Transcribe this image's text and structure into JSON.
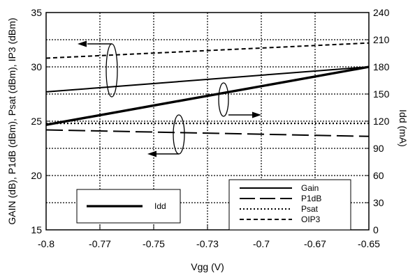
{
  "chart_data": {
    "type": "line",
    "xlabel": "Vgg (V)",
    "ylabel_left": "GAIN (dB), P1dB (dBm), Psat (dBm), IP3 (dBm)",
    "ylabel_right": "Idd (mA)",
    "xlim": [
      -0.8,
      -0.65
    ],
    "ylim_left": [
      15,
      35
    ],
    "ylim_right": [
      0,
      240
    ],
    "x_ticks": [
      -0.8,
      -0.775,
      -0.75,
      -0.725,
      -0.7,
      -0.675,
      -0.65
    ],
    "x_tick_labels": [
      "-0.8",
      "-0.77",
      "-0.75",
      "-0.73",
      "-0.7",
      "-0.67",
      "-0.65"
    ],
    "y_ticks_left": [
      15,
      20,
      25,
      30,
      35
    ],
    "y_ticks_right": [
      0,
      30,
      60,
      90,
      120,
      150,
      180,
      210,
      240
    ],
    "grid": true,
    "series": [
      {
        "name": "Gain",
        "axis": "left",
        "style": "solid",
        "x": [
          -0.8,
          -0.65
        ],
        "y": [
          27.7,
          30.0
        ]
      },
      {
        "name": "P1dB",
        "axis": "left",
        "style": "longdash",
        "x": [
          -0.8,
          -0.65
        ],
        "y": [
          24.2,
          23.6
        ]
      },
      {
        "name": "Psat",
        "axis": "left",
        "style": "dotted",
        "x": [
          -0.8,
          -0.65
        ],
        "y": [
          24.8,
          24.8
        ]
      },
      {
        "name": "OIP3",
        "axis": "left",
        "style": "shortdash",
        "x": [
          -0.8,
          -0.65
        ],
        "y": [
          30.8,
          32.2
        ]
      },
      {
        "name": "Idd",
        "axis": "right",
        "style": "thick",
        "x": [
          -0.8,
          -0.65
        ],
        "y": [
          116,
          180
        ]
      }
    ],
    "legend_main": [
      "Gain",
      "P1dB",
      "Psat",
      "OIP3"
    ],
    "legend_idd": "Idd",
    "legend_placement": "bottom-right"
  }
}
